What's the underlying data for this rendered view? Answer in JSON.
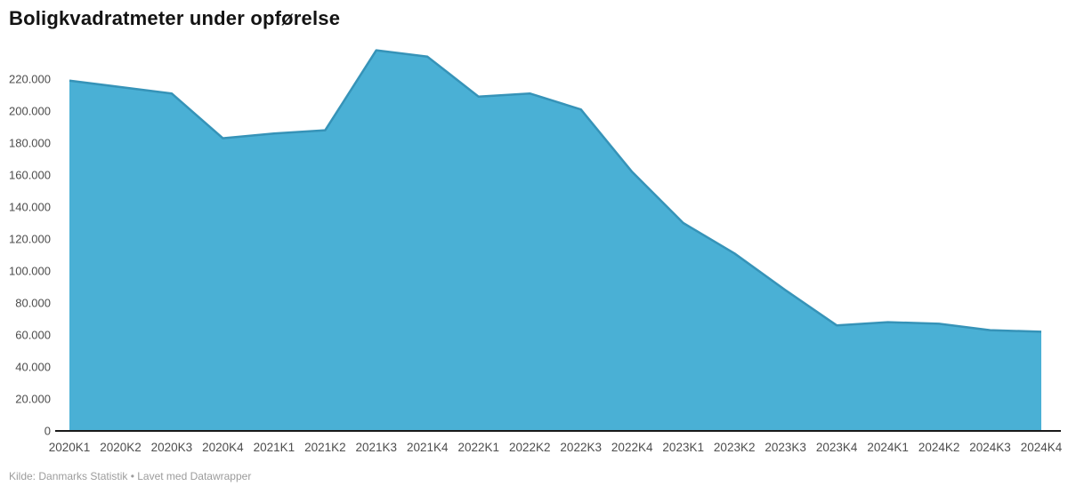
{
  "title": "Boligkvadratmeter under opførelse",
  "footer": {
    "text": "Kilde: Danmarks Statistik • Lavet med Datawrapper"
  },
  "colors": {
    "area_fill": "#4AB0D5",
    "area_line": "#3693B8",
    "axis_line": "#1A1A1A",
    "tick_text": "#4D4D4D",
    "title_text": "#131313",
    "footer_text": "#9C9C9C"
  },
  "y_axis": {
    "tick_labels": [
      "0",
      "20.000",
      "40.000",
      "60.000",
      "80.000",
      "100.000",
      "120.000",
      "140.000",
      "160.000",
      "180.000",
      "200.000",
      "220.000"
    ],
    "tick_values": [
      0,
      20000,
      40000,
      60000,
      80000,
      100000,
      120000,
      140000,
      160000,
      180000,
      200000,
      220000
    ]
  },
  "chart_data": {
    "type": "area",
    "title": "Boligkvadratmeter under opførelse",
    "categories": [
      "2020K1",
      "2020K2",
      "2020K3",
      "2020K4",
      "2021K1",
      "2021K2",
      "2021K3",
      "2021K4",
      "2022K1",
      "2022K2",
      "2022K3",
      "2022K4",
      "2023K1",
      "2023K2",
      "2023K3",
      "2023K4",
      "2024K1",
      "2024K2",
      "2024K3",
      "2024K4"
    ],
    "values": [
      219000,
      215000,
      211000,
      183000,
      186000,
      188000,
      238000,
      234000,
      209000,
      211000,
      201000,
      162000,
      130000,
      111000,
      88000,
      66000,
      68000,
      67000,
      63000,
      62000
    ],
    "xlabel": "",
    "ylabel": "",
    "ylim": [
      0,
      220000
    ],
    "grid": false,
    "legend": false,
    "source": "Kilde: Danmarks Statistik",
    "attribution": "Lavet med Datawrapper"
  }
}
